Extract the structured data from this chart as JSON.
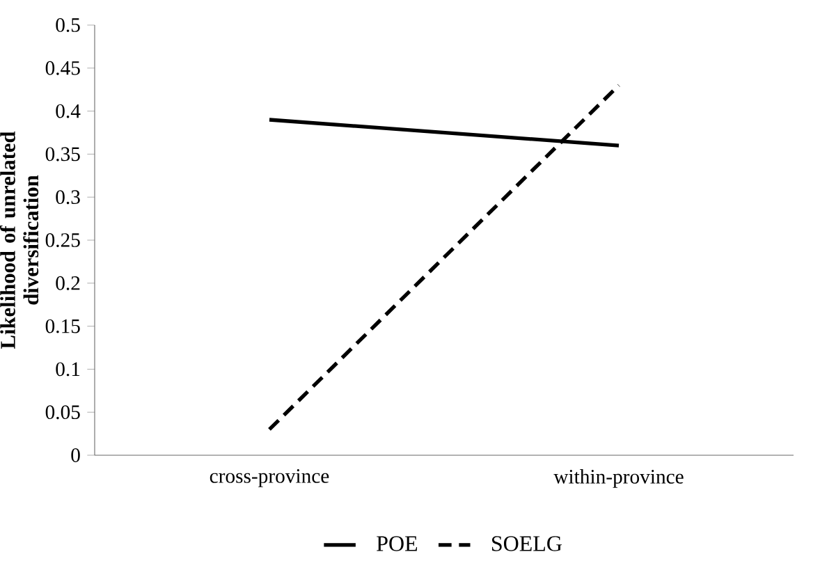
{
  "chart_data": {
    "type": "line",
    "ylabel": "Likelihood of unrelated diversification",
    "categories": [
      "cross-province",
      "within-province"
    ],
    "series": [
      {
        "name": "POE",
        "color": "#000000",
        "line_style": "solid",
        "values": [
          0.39,
          0.36
        ]
      },
      {
        "name": "SOELG",
        "color": "#000000",
        "line_style": "dashed",
        "values": [
          0.03,
          0.43
        ]
      }
    ],
    "ylim": [
      0,
      0.5
    ],
    "yticks": [
      0,
      0.05,
      0.1,
      0.15,
      0.2,
      0.25,
      0.3,
      0.35,
      0.4,
      0.45,
      0.5
    ],
    "grid": false,
    "legend": "bottom",
    "marker": "none"
  }
}
